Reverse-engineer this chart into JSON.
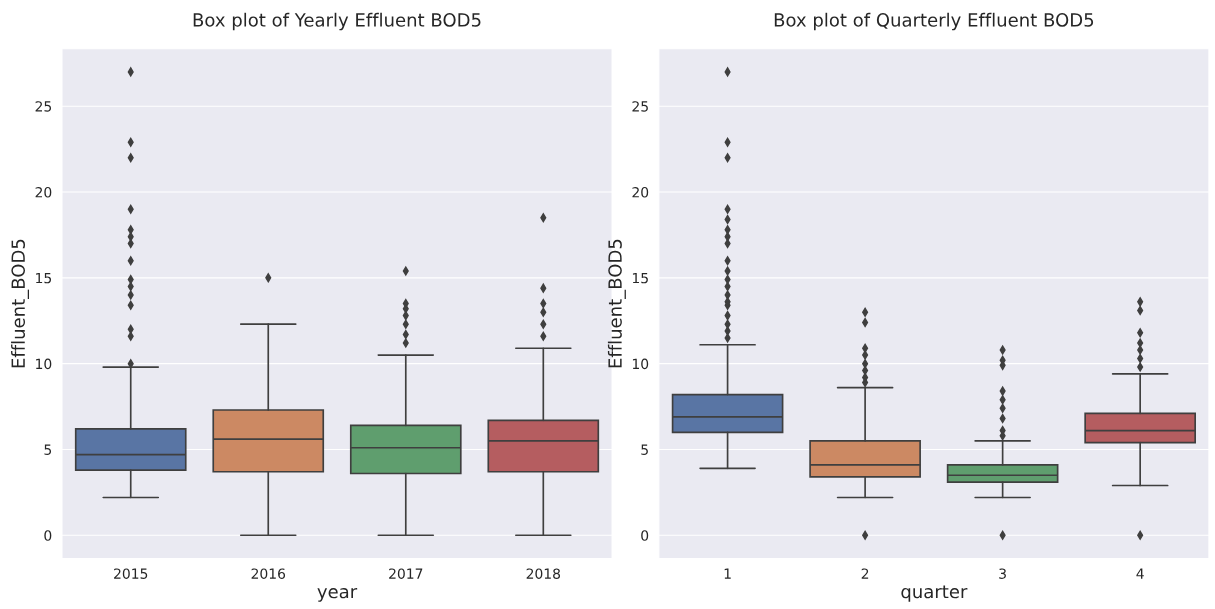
{
  "chart_data": [
    {
      "type": "box",
      "title": "Box plot of Yearly Effluent BOD5",
      "xlabel": "year",
      "ylabel": "Effluent_BOD5",
      "categories": [
        "2015",
        "2016",
        "2017",
        "2018"
      ],
      "colors": [
        "#5975a4",
        "#cc8963",
        "#5f9e6e",
        "#b55d60"
      ],
      "ylim": [
        -1.35,
        28.35
      ],
      "yticks": [
        0,
        5,
        10,
        15,
        20,
        25
      ],
      "grid": "y",
      "boxes": [
        {
          "low": 2.2,
          "q1": 3.8,
          "median": 4.7,
          "q3": 6.2,
          "high": 9.8,
          "outliers": [
            27.0,
            22.9,
            22.0,
            19.0,
            17.8,
            17.4,
            17.0,
            16.0,
            14.9,
            14.5,
            14.0,
            13.4,
            12.0,
            11.6,
            10.0
          ]
        },
        {
          "low": 0,
          "q1": 3.7,
          "median": 5.6,
          "q3": 7.3,
          "high": 12.3,
          "outliers": [
            15.0
          ]
        },
        {
          "low": 0,
          "q1": 3.6,
          "median": 5.1,
          "q3": 6.4,
          "high": 10.5,
          "outliers": [
            15.4,
            13.5,
            13.2,
            12.8,
            12.3,
            11.7,
            11.2
          ]
        },
        {
          "low": 0,
          "q1": 3.7,
          "median": 5.5,
          "q3": 6.7,
          "high": 10.9,
          "outliers": [
            18.5,
            14.4,
            13.5,
            13.0,
            12.3,
            11.6
          ]
        }
      ]
    },
    {
      "type": "box",
      "title": "Box plot of Quarterly Effluent BOD5",
      "xlabel": "quarter",
      "ylabel": "Effluent_BOD5",
      "categories": [
        "1",
        "2",
        "3",
        "4"
      ],
      "colors": [
        "#5975a4",
        "#cc8963",
        "#5f9e6e",
        "#b55d60"
      ],
      "ylim": [
        -1.35,
        28.35
      ],
      "yticks": [
        0,
        5,
        10,
        15,
        20,
        25
      ],
      "grid": "y",
      "boxes": [
        {
          "low": 3.9,
          "q1": 6.0,
          "median": 6.9,
          "q3": 8.2,
          "high": 11.1,
          "outliers": [
            27.0,
            22.9,
            22.0,
            19.0,
            18.4,
            17.8,
            17.4,
            17.0,
            16.0,
            15.4,
            14.9,
            14.5,
            14.0,
            13.6,
            13.4,
            12.8,
            12.3,
            11.9,
            11.5
          ]
        },
        {
          "low": 2.2,
          "q1": 3.4,
          "median": 4.1,
          "q3": 5.5,
          "high": 8.6,
          "outliers": [
            0,
            13.0,
            12.4,
            10.9,
            10.5,
            10.0,
            9.6,
            9.2,
            8.9
          ]
        },
        {
          "low": 2.2,
          "q1": 3.1,
          "median": 3.5,
          "q3": 4.1,
          "high": 5.5,
          "outliers": [
            0,
            10.8,
            10.2,
            9.9,
            8.4,
            7.9,
            7.4,
            6.8,
            6.1,
            5.8
          ]
        },
        {
          "low": 2.9,
          "q1": 5.4,
          "median": 6.1,
          "q3": 7.1,
          "high": 9.4,
          "outliers": [
            0,
            13.6,
            13.1,
            11.8,
            11.2,
            10.8,
            10.3,
            9.8
          ]
        }
      ]
    }
  ]
}
